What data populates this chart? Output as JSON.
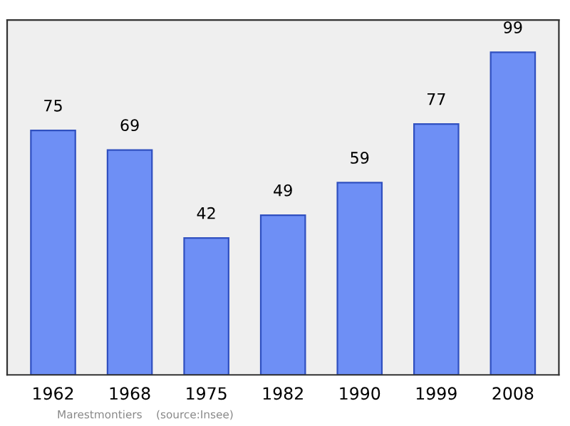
{
  "chart_data": {
    "type": "bar",
    "categories": [
      "1962",
      "1968",
      "1975",
      "1982",
      "1990",
      "1999",
      "2008"
    ],
    "values": [
      75,
      69,
      42,
      49,
      59,
      77,
      99
    ],
    "color": "#6e8ff5",
    "data_labels": true,
    "grid": false,
    "legend": false,
    "tick_labels": "x",
    "annotations": [
      "Marestmontiers    (source:Insee)"
    ]
  }
}
